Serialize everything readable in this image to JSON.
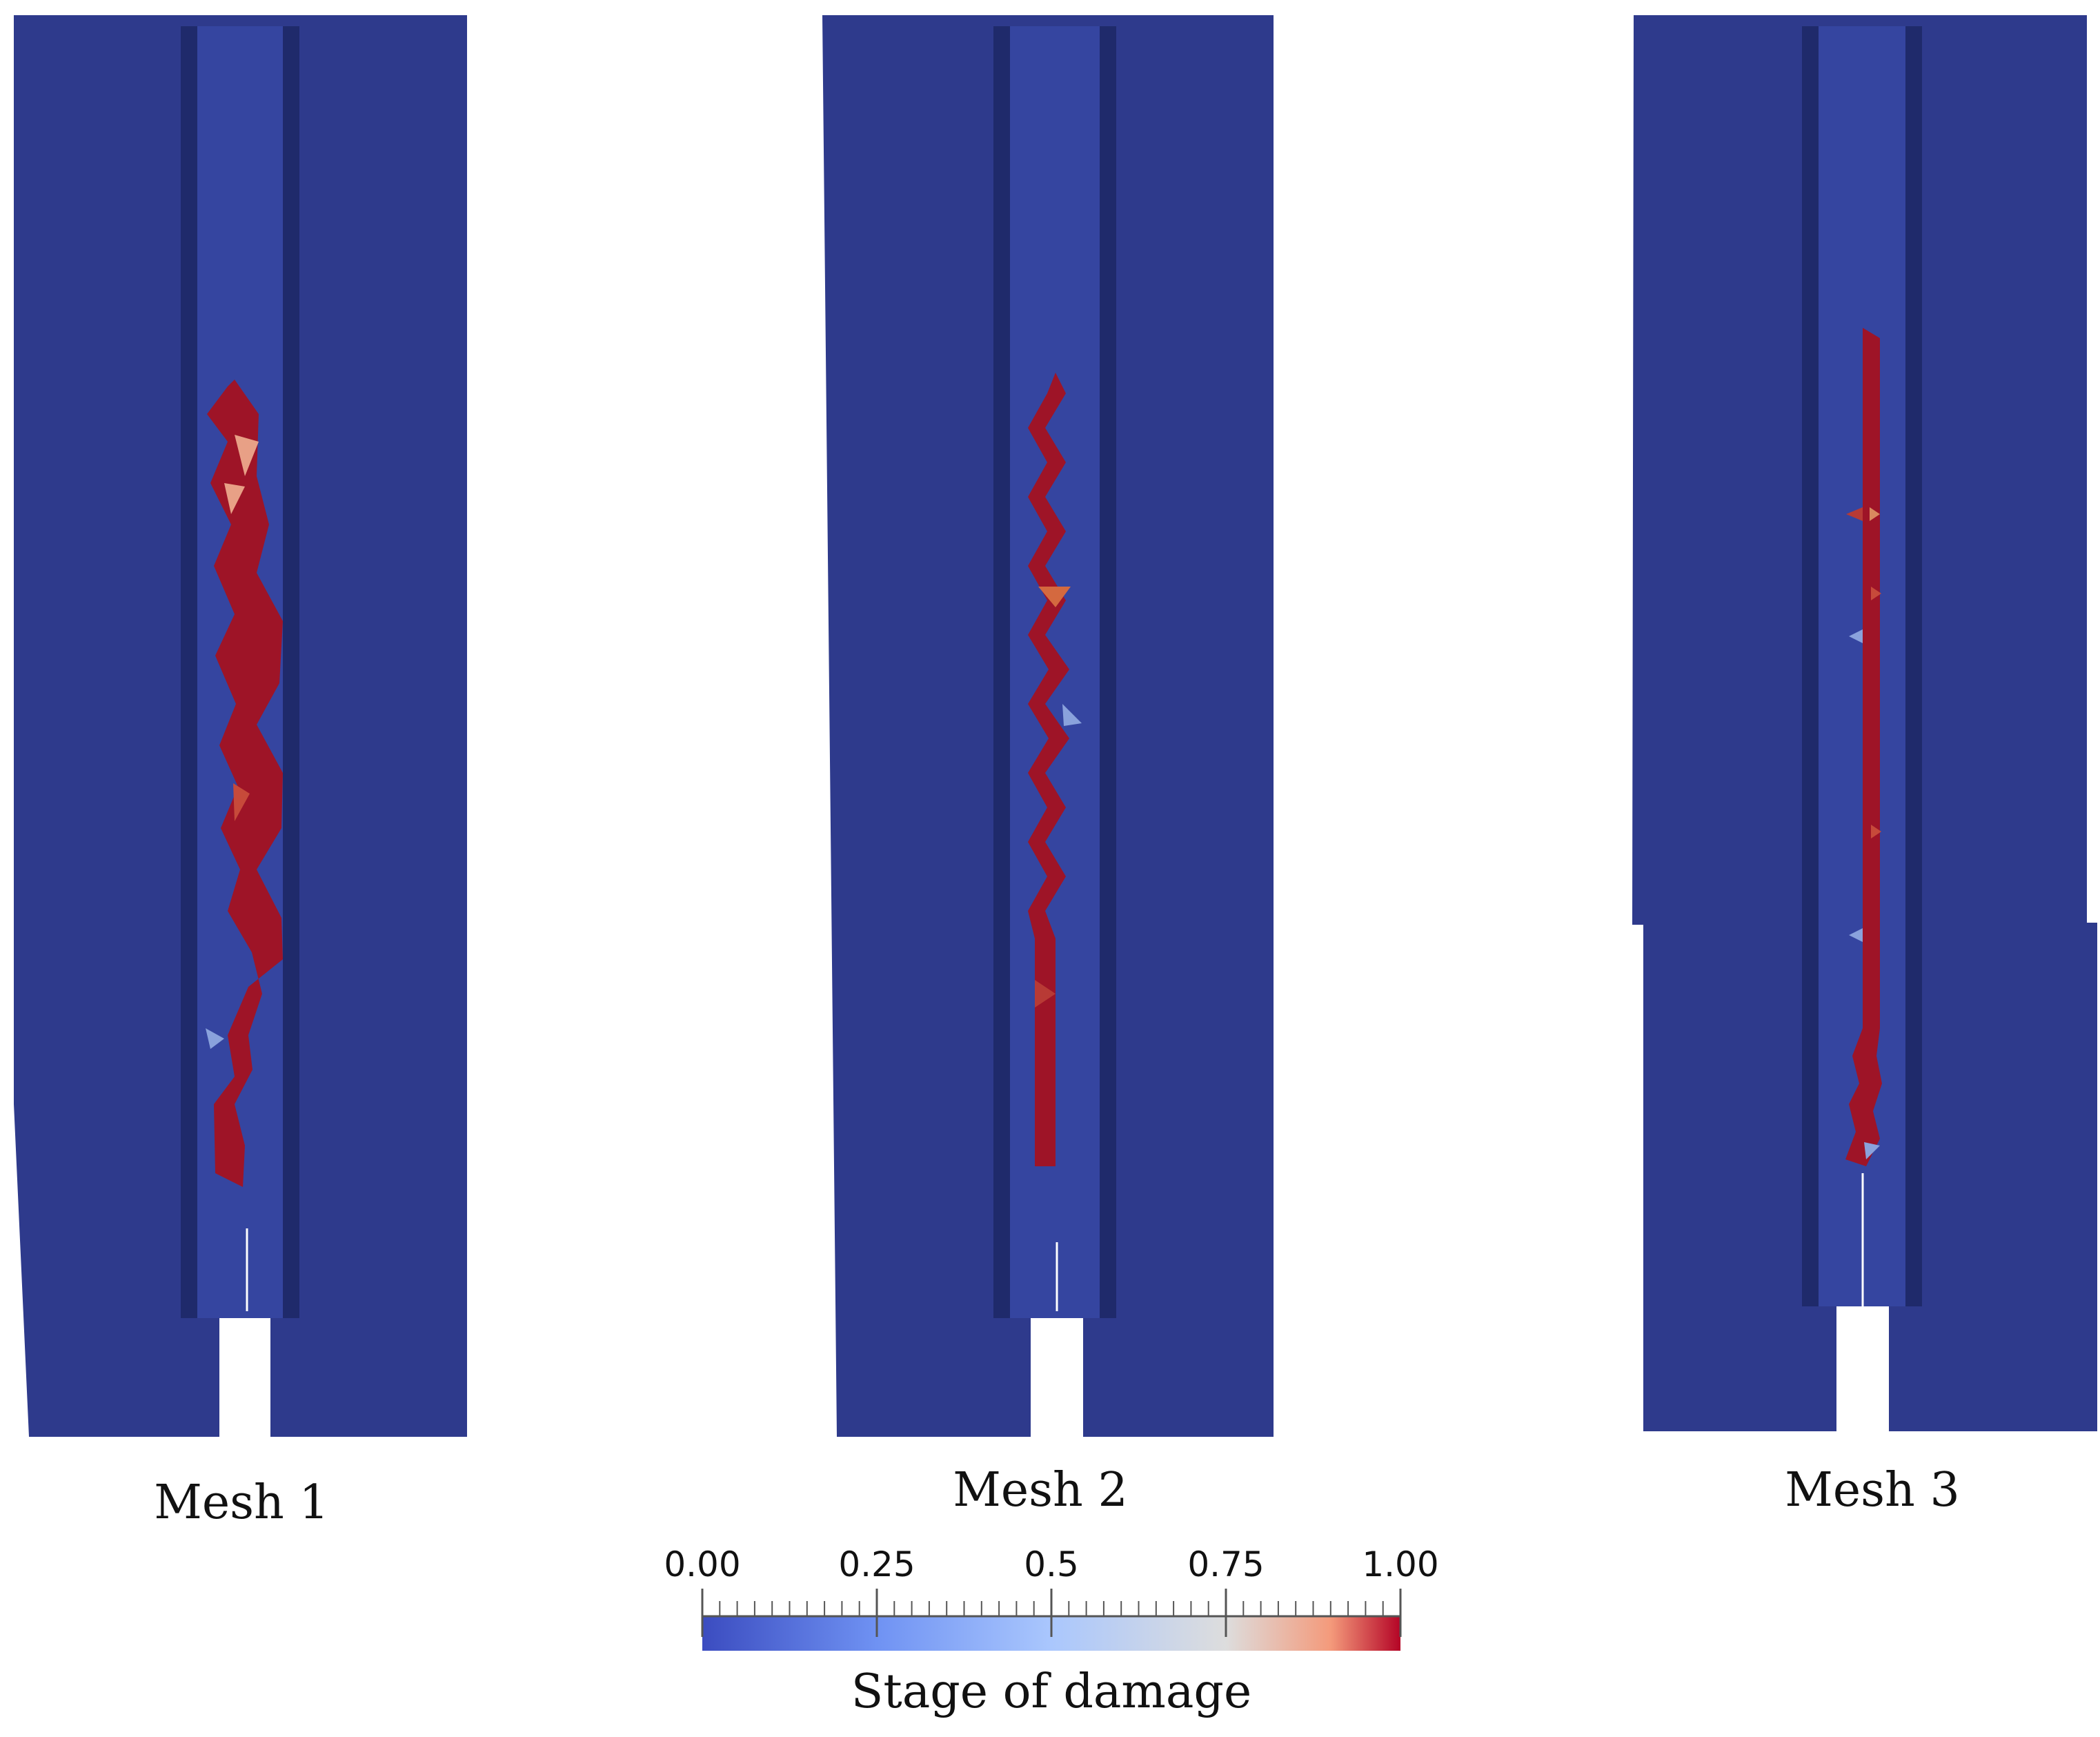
{
  "meshes": [
    {
      "label": "Mesh 1",
      "crack": "zigzag-coarse"
    },
    {
      "label": "Mesh 2",
      "crack": "zigzag-fine"
    },
    {
      "label": "Mesh 3",
      "crack": "straight"
    }
  ],
  "colorbar": {
    "title": "Stage of damage",
    "min": 0.0,
    "max": 1.0,
    "ticks": [
      "0.00",
      "0.25",
      "0.5",
      "0.75",
      "1.00"
    ],
    "stops": [
      "#3b4cc0",
      "#6f92f3",
      "#aac7fd",
      "#dddddd",
      "#f49a7b",
      "#b40426"
    ]
  },
  "colors": {
    "undamaged": "#2e3a8c",
    "damaged": "#9e1427",
    "slot_light": "#3545a0",
    "slot_dark": "#1f2a6b"
  }
}
